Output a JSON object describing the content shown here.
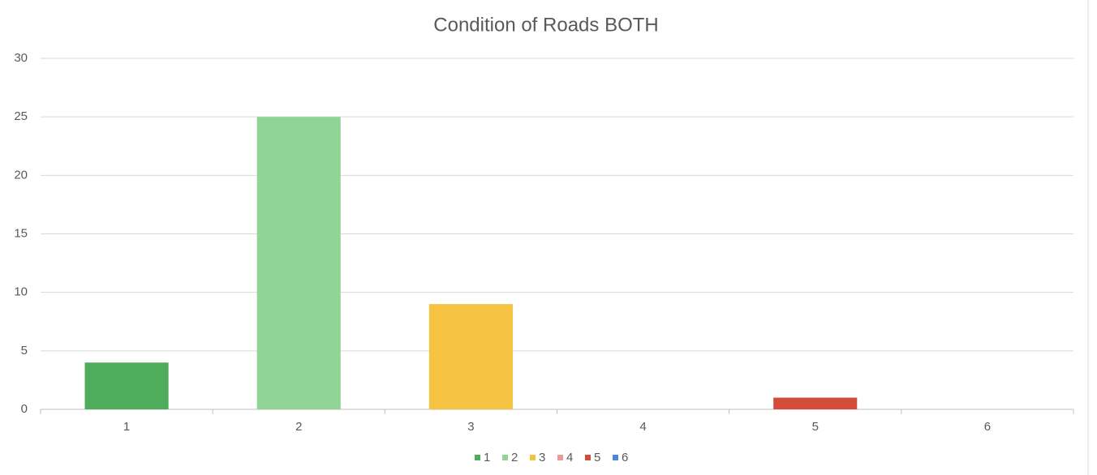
{
  "chart_data": {
    "type": "bar",
    "title": "Condition of Roads BOTH",
    "categories": [
      "1",
      "2",
      "3",
      "4",
      "5",
      "6"
    ],
    "values": [
      4,
      25,
      9,
      0,
      1,
      0
    ],
    "colors": [
      "#4eac5b",
      "#90d595",
      "#f5c242",
      "#e99a94",
      "#d34b3a",
      "#4a86e0"
    ],
    "ylim": [
      0,
      30
    ],
    "yticks": [
      0,
      5,
      10,
      15,
      20,
      25,
      30
    ],
    "grid": true
  }
}
